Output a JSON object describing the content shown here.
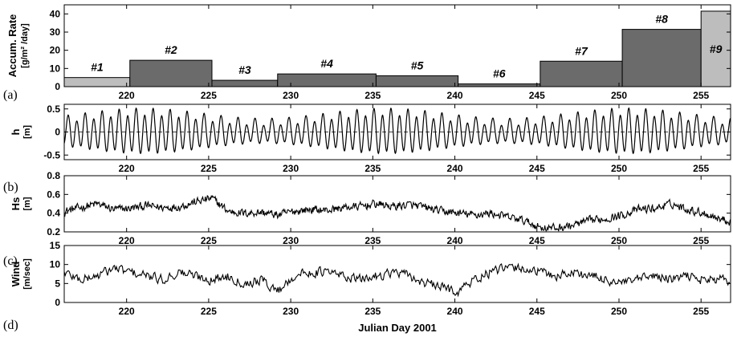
{
  "chart_data": [
    {
      "type": "bar",
      "panel_label": "(a)",
      "ylabel": "Accum. Rate",
      "ylabel_units": "[g/m² /day]",
      "ylim": [
        0,
        45
      ],
      "yticks": [
        0,
        10,
        20,
        30,
        40
      ],
      "xlim": [
        216.2,
        256.8
      ],
      "xticks": [
        220,
        225,
        230,
        235,
        240,
        245,
        250,
        255
      ],
      "bars": [
        {
          "label": "#1",
          "x0": 216.2,
          "x1": 220.2,
          "value": 5,
          "color": "#bdbdbd"
        },
        {
          "label": "#2",
          "x0": 220.2,
          "x1": 225.2,
          "value": 14.5,
          "color": "#6b6b6b"
        },
        {
          "label": "#3",
          "x0": 225.2,
          "x1": 229.2,
          "value": 3.5,
          "color": "#6b6b6b"
        },
        {
          "label": "#4",
          "x0": 229.2,
          "x1": 235.2,
          "value": 7,
          "color": "#6b6b6b"
        },
        {
          "label": "#5",
          "x0": 235.2,
          "x1": 240.2,
          "value": 6,
          "color": "#6b6b6b"
        },
        {
          "label": "#6",
          "x0": 240.2,
          "x1": 245.2,
          "value": 1.5,
          "color": "#6b6b6b"
        },
        {
          "label": "#7",
          "x0": 245.2,
          "x1": 250.2,
          "value": 14,
          "color": "#6b6b6b"
        },
        {
          "label": "#8",
          "x0": 250.2,
          "x1": 255.0,
          "value": 31.5,
          "color": "#6b6b6b"
        },
        {
          "label": "#9",
          "x0": 255.0,
          "x1": 256.8,
          "value": 41.5,
          "color": "#bdbdbd"
        }
      ]
    },
    {
      "type": "line",
      "panel_label": "(b)",
      "ylabel": "h",
      "ylabel_units": "[m]",
      "ylim": [
        -0.6,
        0.6
      ],
      "yticks": [
        -0.5,
        0,
        0.5
      ],
      "ytick_labels": [
        "-0.5",
        "0",
        "0.5"
      ],
      "xlim": [
        216.2,
        256.8
      ],
      "xticks": [
        220,
        225,
        230,
        235,
        240,
        245,
        250,
        255
      ],
      "description": "semidiurnal tidal elevation",
      "series": [
        {
          "model": "tide",
          "period_days": 0.5175,
          "neap_days": [
            217.5,
            224.5,
            232.0,
            239.5,
            246.5,
            254.0
          ],
          "spring_days": [
            221.0,
            228.5,
            236.0,
            243.0,
            250.5
          ],
          "spring_amp": 0.44,
          "neap_amp": 0.22
        }
      ]
    },
    {
      "type": "line",
      "panel_label": "(c)",
      "ylabel": "Hs",
      "ylabel_units": "[m]",
      "ylim": [
        0.2,
        0.8
      ],
      "yticks": [
        0.2,
        0.4,
        0.6,
        0.8
      ],
      "ytick_labels": [
        "0.2",
        "0.4",
        "0.6",
        "0.8"
      ],
      "xlim": [
        216.2,
        256.8
      ],
      "xticks": [
        220,
        225,
        230,
        235,
        240,
        245,
        250,
        255
      ],
      "series": [
        {
          "days": [
            216.2,
            217.2,
            218.2,
            219.2,
            220.2,
            221.2,
            222.2,
            223.2,
            224.2,
            225.2,
            226.2,
            227.2,
            228.2,
            229.2,
            230.2,
            231.2,
            232.2,
            233.2,
            234.2,
            235.2,
            236.2,
            237.2,
            238.2,
            239.2,
            240.2,
            241.2,
            242.2,
            243.2,
            244.2,
            245.2,
            246.2,
            247.2,
            248.2,
            249.2,
            250.2,
            251.2,
            252.2,
            253.2,
            254.2,
            255.2,
            256.2,
            256.8
          ],
          "mean": [
            0.42,
            0.46,
            0.5,
            0.44,
            0.45,
            0.48,
            0.46,
            0.47,
            0.52,
            0.56,
            0.42,
            0.4,
            0.41,
            0.38,
            0.42,
            0.44,
            0.43,
            0.46,
            0.47,
            0.5,
            0.47,
            0.49,
            0.46,
            0.42,
            0.4,
            0.38,
            0.4,
            0.36,
            0.32,
            0.25,
            0.24,
            0.27,
            0.32,
            0.34,
            0.38,
            0.44,
            0.45,
            0.5,
            0.44,
            0.4,
            0.34,
            0.31
          ],
          "noise": 0.06
        }
      ]
    },
    {
      "type": "line",
      "panel_label": "(d)",
      "ylabel": "Wind",
      "ylabel_units": "[m/sec]",
      "ylim": [
        0,
        15
      ],
      "yticks": [
        0,
        5,
        10,
        15
      ],
      "ytick_labels": [
        "0",
        "5",
        "10",
        "15"
      ],
      "xlim": [
        216.2,
        256.8
      ],
      "xticks": [
        220,
        225,
        230,
        235,
        240,
        245,
        250,
        255
      ],
      "xlabel": "Julian Day 2001",
      "series": [
        {
          "days": [
            216.2,
            217.2,
            218.2,
            219.2,
            220.2,
            221.2,
            222.2,
            223.2,
            224.2,
            225.2,
            226.2,
            227.2,
            228.2,
            229.2,
            230.2,
            231.2,
            232.2,
            233.2,
            234.2,
            235.2,
            236.2,
            237.2,
            238.2,
            239.2,
            240.2,
            241.2,
            242.2,
            243.2,
            244.2,
            245.2,
            246.2,
            247.2,
            248.2,
            249.2,
            250.2,
            251.2,
            252.2,
            253.2,
            254.2,
            255.2,
            256.2,
            256.8
          ],
          "mean": [
            8,
            6,
            7,
            9,
            8,
            7,
            6,
            8,
            7,
            6,
            7,
            5,
            6,
            3,
            7,
            8,
            8,
            7,
            6,
            7,
            8,
            7,
            5,
            4,
            3,
            6,
            8,
            9,
            9,
            8,
            7,
            8,
            7,
            6,
            5,
            6,
            7,
            6,
            7,
            6,
            6,
            6
          ],
          "noise": 1.8
        }
      ]
    }
  ]
}
